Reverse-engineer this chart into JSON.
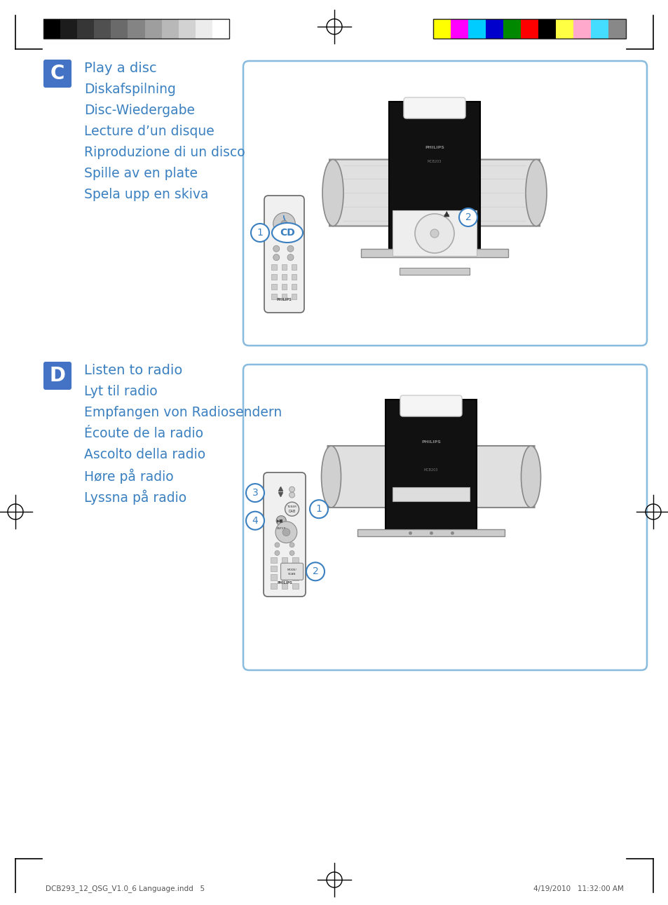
{
  "bg_color": "#ffffff",
  "blue_color": "#4472C4",
  "text_blue": "#3a80c0",
  "section_C": {
    "label": "C",
    "title": "Play a disc",
    "lines": [
      "Diskafspilning",
      "Disc-Wiedergabe",
      "Lecture d’un disque",
      "Riproduzione di un disco",
      "Spille av en plate",
      "Spela upp en skiva"
    ]
  },
  "section_D": {
    "label": "D",
    "title": "Listen to radio",
    "lines": [
      "Lyt til radio",
      "Empfangen von Radiosendern",
      "Écoute de la radio",
      "Ascolto della radio",
      "Høre på radio",
      "Lyssna på radio"
    ]
  },
  "footer_left": "DCB293_12_QSG_V1.0_6 Language.indd   5",
  "footer_right": "4/19/2010   11:32:00 AM",
  "grayscale_colors": [
    "#000000",
    "#1c1c1c",
    "#363636",
    "#505050",
    "#6a6a6a",
    "#848484",
    "#9e9e9e",
    "#b8b8b8",
    "#d2d2d2",
    "#ececec",
    "#ffffff"
  ],
  "color_bars": [
    "#ffff00",
    "#ff00ff",
    "#00ccff",
    "#0000cc",
    "#008800",
    "#ff0000",
    "#000000",
    "#ffff44",
    "#ffaacc",
    "#44ddff",
    "#888888"
  ]
}
